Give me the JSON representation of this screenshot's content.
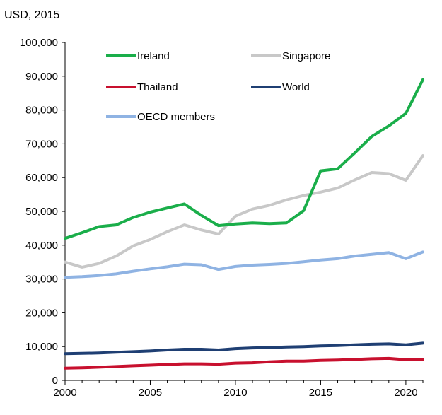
{
  "chart_data": {
    "type": "line",
    "title": "",
    "unit_label": "USD, 2015",
    "xlabel": "",
    "ylabel": "",
    "xlim": [
      2000,
      2021
    ],
    "ylim": [
      0,
      100000
    ],
    "x_ticks": [
      2000,
      2005,
      2010,
      2015,
      2020
    ],
    "x_tick_labels": [
      "2000",
      "2005",
      "2010",
      "2015",
      "2020"
    ],
    "y_ticks": [
      0,
      10000,
      20000,
      30000,
      40000,
      50000,
      60000,
      70000,
      80000,
      90000,
      100000
    ],
    "y_tick_labels": [
      "0",
      "10,000",
      "20,000",
      "30,000",
      "40,000",
      "50,000",
      "60,000",
      "70,000",
      "80,000",
      "90,000",
      "100,000"
    ],
    "grid": false,
    "legend_position": "top-inside",
    "x": [
      2000,
      2001,
      2002,
      2003,
      2004,
      2005,
      2006,
      2007,
      2008,
      2009,
      2010,
      2011,
      2012,
      2013,
      2014,
      2015,
      2016,
      2017,
      2018,
      2019,
      2020,
      2021
    ],
    "series": [
      {
        "name": "Ireland",
        "color": "#1aae4a",
        "values": [
          42000,
          43700,
          45500,
          46000,
          48200,
          49800,
          51000,
          52200,
          48800,
          45800,
          46300,
          46600,
          46400,
          46600,
          50200,
          62000,
          62600,
          67300,
          72200,
          75300,
          79000,
          89000
        ]
      },
      {
        "name": "Singapore",
        "color": "#c8c8c8",
        "values": [
          35000,
          33500,
          34600,
          36800,
          39800,
          41700,
          44000,
          46000,
          44500,
          43300,
          48600,
          50700,
          51800,
          53400,
          54700,
          55700,
          56900,
          59300,
          61500,
          61200,
          59200,
          66500
        ]
      },
      {
        "name": "Thailand",
        "color": "#c8102e",
        "values": [
          3600,
          3700,
          3900,
          4100,
          4300,
          4500,
          4700,
          4900,
          4900,
          4800,
          5100,
          5200,
          5500,
          5700,
          5700,
          5900,
          6000,
          6200,
          6400,
          6500,
          6100,
          6200
        ]
      },
      {
        "name": "World",
        "color": "#1f3f73",
        "values": [
          7900,
          8000,
          8100,
          8300,
          8500,
          8700,
          9000,
          9200,
          9200,
          9000,
          9400,
          9600,
          9700,
          9900,
          10000,
          10200,
          10300,
          10500,
          10700,
          10800,
          10500,
          11000
        ]
      },
      {
        "name": "OECD members",
        "color": "#8fb3e3",
        "values": [
          30500,
          30700,
          31000,
          31500,
          32300,
          33000,
          33600,
          34400,
          34200,
          32800,
          33700,
          34100,
          34300,
          34600,
          35100,
          35600,
          36000,
          36800,
          37300,
          37800,
          36000,
          38000
        ]
      }
    ]
  }
}
